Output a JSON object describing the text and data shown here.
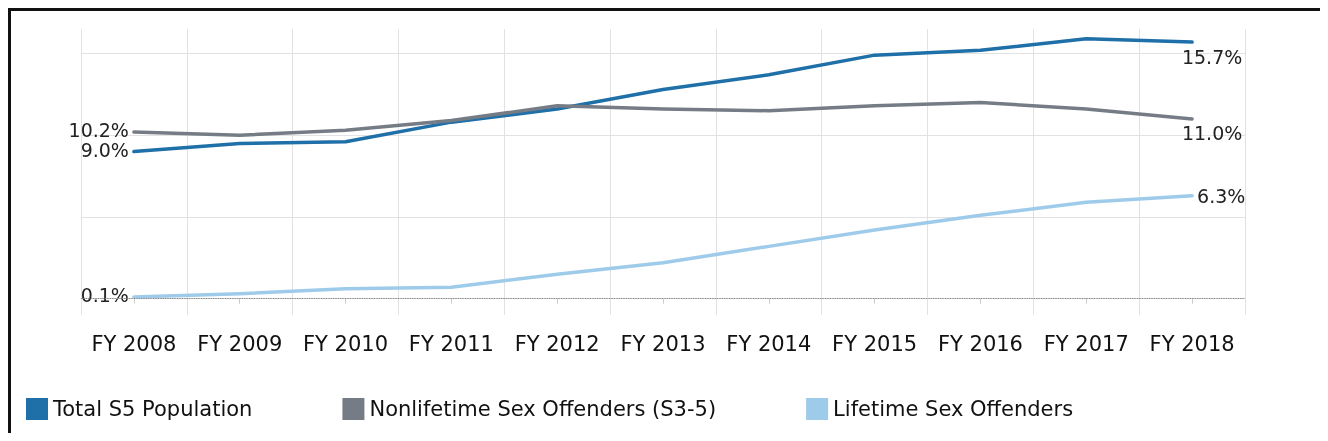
{
  "chart_data": {
    "type": "line",
    "categories": [
      "FY 2008",
      "FY 2009",
      "FY 2010",
      "FY 2011",
      "FY 2012",
      "FY 2013",
      "FY 2014",
      "FY 2015",
      "FY 2016",
      "FY 2017",
      "FY 2018"
    ],
    "series": [
      {
        "name": "Total S5 Population",
        "color": "#1f6fa8",
        "values": [
          9.0,
          9.5,
          9.6,
          10.8,
          11.6,
          12.8,
          13.7,
          14.9,
          15.2,
          15.9,
          15.7
        ],
        "value_labels": [
          "9.0%",
          null,
          null,
          null,
          null,
          null,
          null,
          null,
          null,
          null,
          "15.7%"
        ]
      },
      {
        "name": "Nonlifetime Sex Offenders (S3-5)",
        "color": "#767c86",
        "values": [
          10.2,
          10.0,
          10.3,
          10.9,
          11.8,
          11.6,
          11.5,
          11.8,
          12.0,
          11.6,
          11.0
        ],
        "value_labels": [
          "10.2%",
          null,
          null,
          null,
          null,
          null,
          null,
          null,
          null,
          null,
          "11.0%"
        ]
      },
      {
        "name": "Lifetime Sex Offenders",
        "color": "#9fcbea",
        "values": [
          0.1,
          0.3,
          0.6,
          0.7,
          1.5,
          2.2,
          3.2,
          4.2,
          5.1,
          5.9,
          6.3
        ],
        "value_labels": [
          "0.1%",
          null,
          null,
          null,
          null,
          null,
          null,
          null,
          null,
          null,
          "6.3%"
        ]
      }
    ],
    "ylim": [
      -1,
      16.5
    ],
    "yticks": [
      {
        "value": 0,
        "label": null
      },
      {
        "value": 5,
        "label": null
      },
      {
        "value": 10,
        "label": null
      },
      {
        "value": 15,
        "label": null
      }
    ],
    "tick_labels": "x",
    "ref_lines": [
      {
        "axis": "y",
        "value": 0,
        "color": "#888888",
        "line_style": "dotted"
      }
    ],
    "grid": true,
    "legend": "bottom",
    "marker": "none",
    "line_style": "solid"
  }
}
